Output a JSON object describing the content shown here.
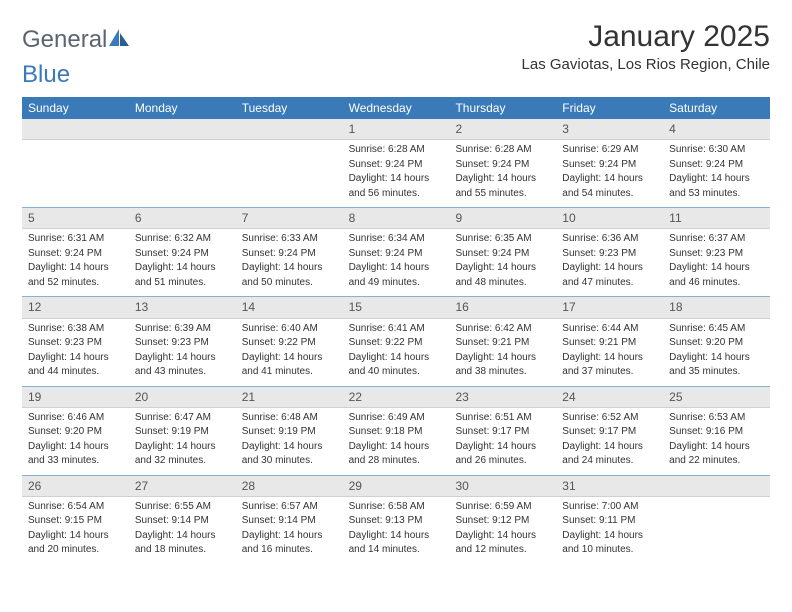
{
  "brand": {
    "part1": "General",
    "part2": "Blue"
  },
  "logo_color": "#3a7ab8",
  "header_bg": "#3a7ab8",
  "title": "January 2025",
  "location": "Las Gaviotas, Los Rios Region, Chile",
  "day_names": [
    "Sunday",
    "Monday",
    "Tuesday",
    "Wednesday",
    "Thursday",
    "Friday",
    "Saturday"
  ],
  "weeks": [
    [
      null,
      null,
      null,
      {
        "n": "1",
        "sr": "Sunrise: 6:28 AM",
        "ss": "Sunset: 9:24 PM",
        "dl1": "Daylight: 14 hours",
        "dl2": "and 56 minutes."
      },
      {
        "n": "2",
        "sr": "Sunrise: 6:28 AM",
        "ss": "Sunset: 9:24 PM",
        "dl1": "Daylight: 14 hours",
        "dl2": "and 55 minutes."
      },
      {
        "n": "3",
        "sr": "Sunrise: 6:29 AM",
        "ss": "Sunset: 9:24 PM",
        "dl1": "Daylight: 14 hours",
        "dl2": "and 54 minutes."
      },
      {
        "n": "4",
        "sr": "Sunrise: 6:30 AM",
        "ss": "Sunset: 9:24 PM",
        "dl1": "Daylight: 14 hours",
        "dl2": "and 53 minutes."
      }
    ],
    [
      {
        "n": "5",
        "sr": "Sunrise: 6:31 AM",
        "ss": "Sunset: 9:24 PM",
        "dl1": "Daylight: 14 hours",
        "dl2": "and 52 minutes."
      },
      {
        "n": "6",
        "sr": "Sunrise: 6:32 AM",
        "ss": "Sunset: 9:24 PM",
        "dl1": "Daylight: 14 hours",
        "dl2": "and 51 minutes."
      },
      {
        "n": "7",
        "sr": "Sunrise: 6:33 AM",
        "ss": "Sunset: 9:24 PM",
        "dl1": "Daylight: 14 hours",
        "dl2": "and 50 minutes."
      },
      {
        "n": "8",
        "sr": "Sunrise: 6:34 AM",
        "ss": "Sunset: 9:24 PM",
        "dl1": "Daylight: 14 hours",
        "dl2": "and 49 minutes."
      },
      {
        "n": "9",
        "sr": "Sunrise: 6:35 AM",
        "ss": "Sunset: 9:24 PM",
        "dl1": "Daylight: 14 hours",
        "dl2": "and 48 minutes."
      },
      {
        "n": "10",
        "sr": "Sunrise: 6:36 AM",
        "ss": "Sunset: 9:23 PM",
        "dl1": "Daylight: 14 hours",
        "dl2": "and 47 minutes."
      },
      {
        "n": "11",
        "sr": "Sunrise: 6:37 AM",
        "ss": "Sunset: 9:23 PM",
        "dl1": "Daylight: 14 hours",
        "dl2": "and 46 minutes."
      }
    ],
    [
      {
        "n": "12",
        "sr": "Sunrise: 6:38 AM",
        "ss": "Sunset: 9:23 PM",
        "dl1": "Daylight: 14 hours",
        "dl2": "and 44 minutes."
      },
      {
        "n": "13",
        "sr": "Sunrise: 6:39 AM",
        "ss": "Sunset: 9:23 PM",
        "dl1": "Daylight: 14 hours",
        "dl2": "and 43 minutes."
      },
      {
        "n": "14",
        "sr": "Sunrise: 6:40 AM",
        "ss": "Sunset: 9:22 PM",
        "dl1": "Daylight: 14 hours",
        "dl2": "and 41 minutes."
      },
      {
        "n": "15",
        "sr": "Sunrise: 6:41 AM",
        "ss": "Sunset: 9:22 PM",
        "dl1": "Daylight: 14 hours",
        "dl2": "and 40 minutes."
      },
      {
        "n": "16",
        "sr": "Sunrise: 6:42 AM",
        "ss": "Sunset: 9:21 PM",
        "dl1": "Daylight: 14 hours",
        "dl2": "and 38 minutes."
      },
      {
        "n": "17",
        "sr": "Sunrise: 6:44 AM",
        "ss": "Sunset: 9:21 PM",
        "dl1": "Daylight: 14 hours",
        "dl2": "and 37 minutes."
      },
      {
        "n": "18",
        "sr": "Sunrise: 6:45 AM",
        "ss": "Sunset: 9:20 PM",
        "dl1": "Daylight: 14 hours",
        "dl2": "and 35 minutes."
      }
    ],
    [
      {
        "n": "19",
        "sr": "Sunrise: 6:46 AM",
        "ss": "Sunset: 9:20 PM",
        "dl1": "Daylight: 14 hours",
        "dl2": "and 33 minutes."
      },
      {
        "n": "20",
        "sr": "Sunrise: 6:47 AM",
        "ss": "Sunset: 9:19 PM",
        "dl1": "Daylight: 14 hours",
        "dl2": "and 32 minutes."
      },
      {
        "n": "21",
        "sr": "Sunrise: 6:48 AM",
        "ss": "Sunset: 9:19 PM",
        "dl1": "Daylight: 14 hours",
        "dl2": "and 30 minutes."
      },
      {
        "n": "22",
        "sr": "Sunrise: 6:49 AM",
        "ss": "Sunset: 9:18 PM",
        "dl1": "Daylight: 14 hours",
        "dl2": "and 28 minutes."
      },
      {
        "n": "23",
        "sr": "Sunrise: 6:51 AM",
        "ss": "Sunset: 9:17 PM",
        "dl1": "Daylight: 14 hours",
        "dl2": "and 26 minutes."
      },
      {
        "n": "24",
        "sr": "Sunrise: 6:52 AM",
        "ss": "Sunset: 9:17 PM",
        "dl1": "Daylight: 14 hours",
        "dl2": "and 24 minutes."
      },
      {
        "n": "25",
        "sr": "Sunrise: 6:53 AM",
        "ss": "Sunset: 9:16 PM",
        "dl1": "Daylight: 14 hours",
        "dl2": "and 22 minutes."
      }
    ],
    [
      {
        "n": "26",
        "sr": "Sunrise: 6:54 AM",
        "ss": "Sunset: 9:15 PM",
        "dl1": "Daylight: 14 hours",
        "dl2": "and 20 minutes."
      },
      {
        "n": "27",
        "sr": "Sunrise: 6:55 AM",
        "ss": "Sunset: 9:14 PM",
        "dl1": "Daylight: 14 hours",
        "dl2": "and 18 minutes."
      },
      {
        "n": "28",
        "sr": "Sunrise: 6:57 AM",
        "ss": "Sunset: 9:14 PM",
        "dl1": "Daylight: 14 hours",
        "dl2": "and 16 minutes."
      },
      {
        "n": "29",
        "sr": "Sunrise: 6:58 AM",
        "ss": "Sunset: 9:13 PM",
        "dl1": "Daylight: 14 hours",
        "dl2": "and 14 minutes."
      },
      {
        "n": "30",
        "sr": "Sunrise: 6:59 AM",
        "ss": "Sunset: 9:12 PM",
        "dl1": "Daylight: 14 hours",
        "dl2": "and 12 minutes."
      },
      {
        "n": "31",
        "sr": "Sunrise: 7:00 AM",
        "ss": "Sunset: 9:11 PM",
        "dl1": "Daylight: 14 hours",
        "dl2": "and 10 minutes."
      },
      null
    ]
  ],
  "style": {
    "title_fontsize": 30,
    "location_fontsize": 15,
    "dayheader_fontsize": 12,
    "daynum_fontsize": 12,
    "body_fontsize": 10,
    "daynum_bg": "#e8e8e8",
    "text_color": "#333333",
    "separator_color": "#3a7ab8"
  }
}
